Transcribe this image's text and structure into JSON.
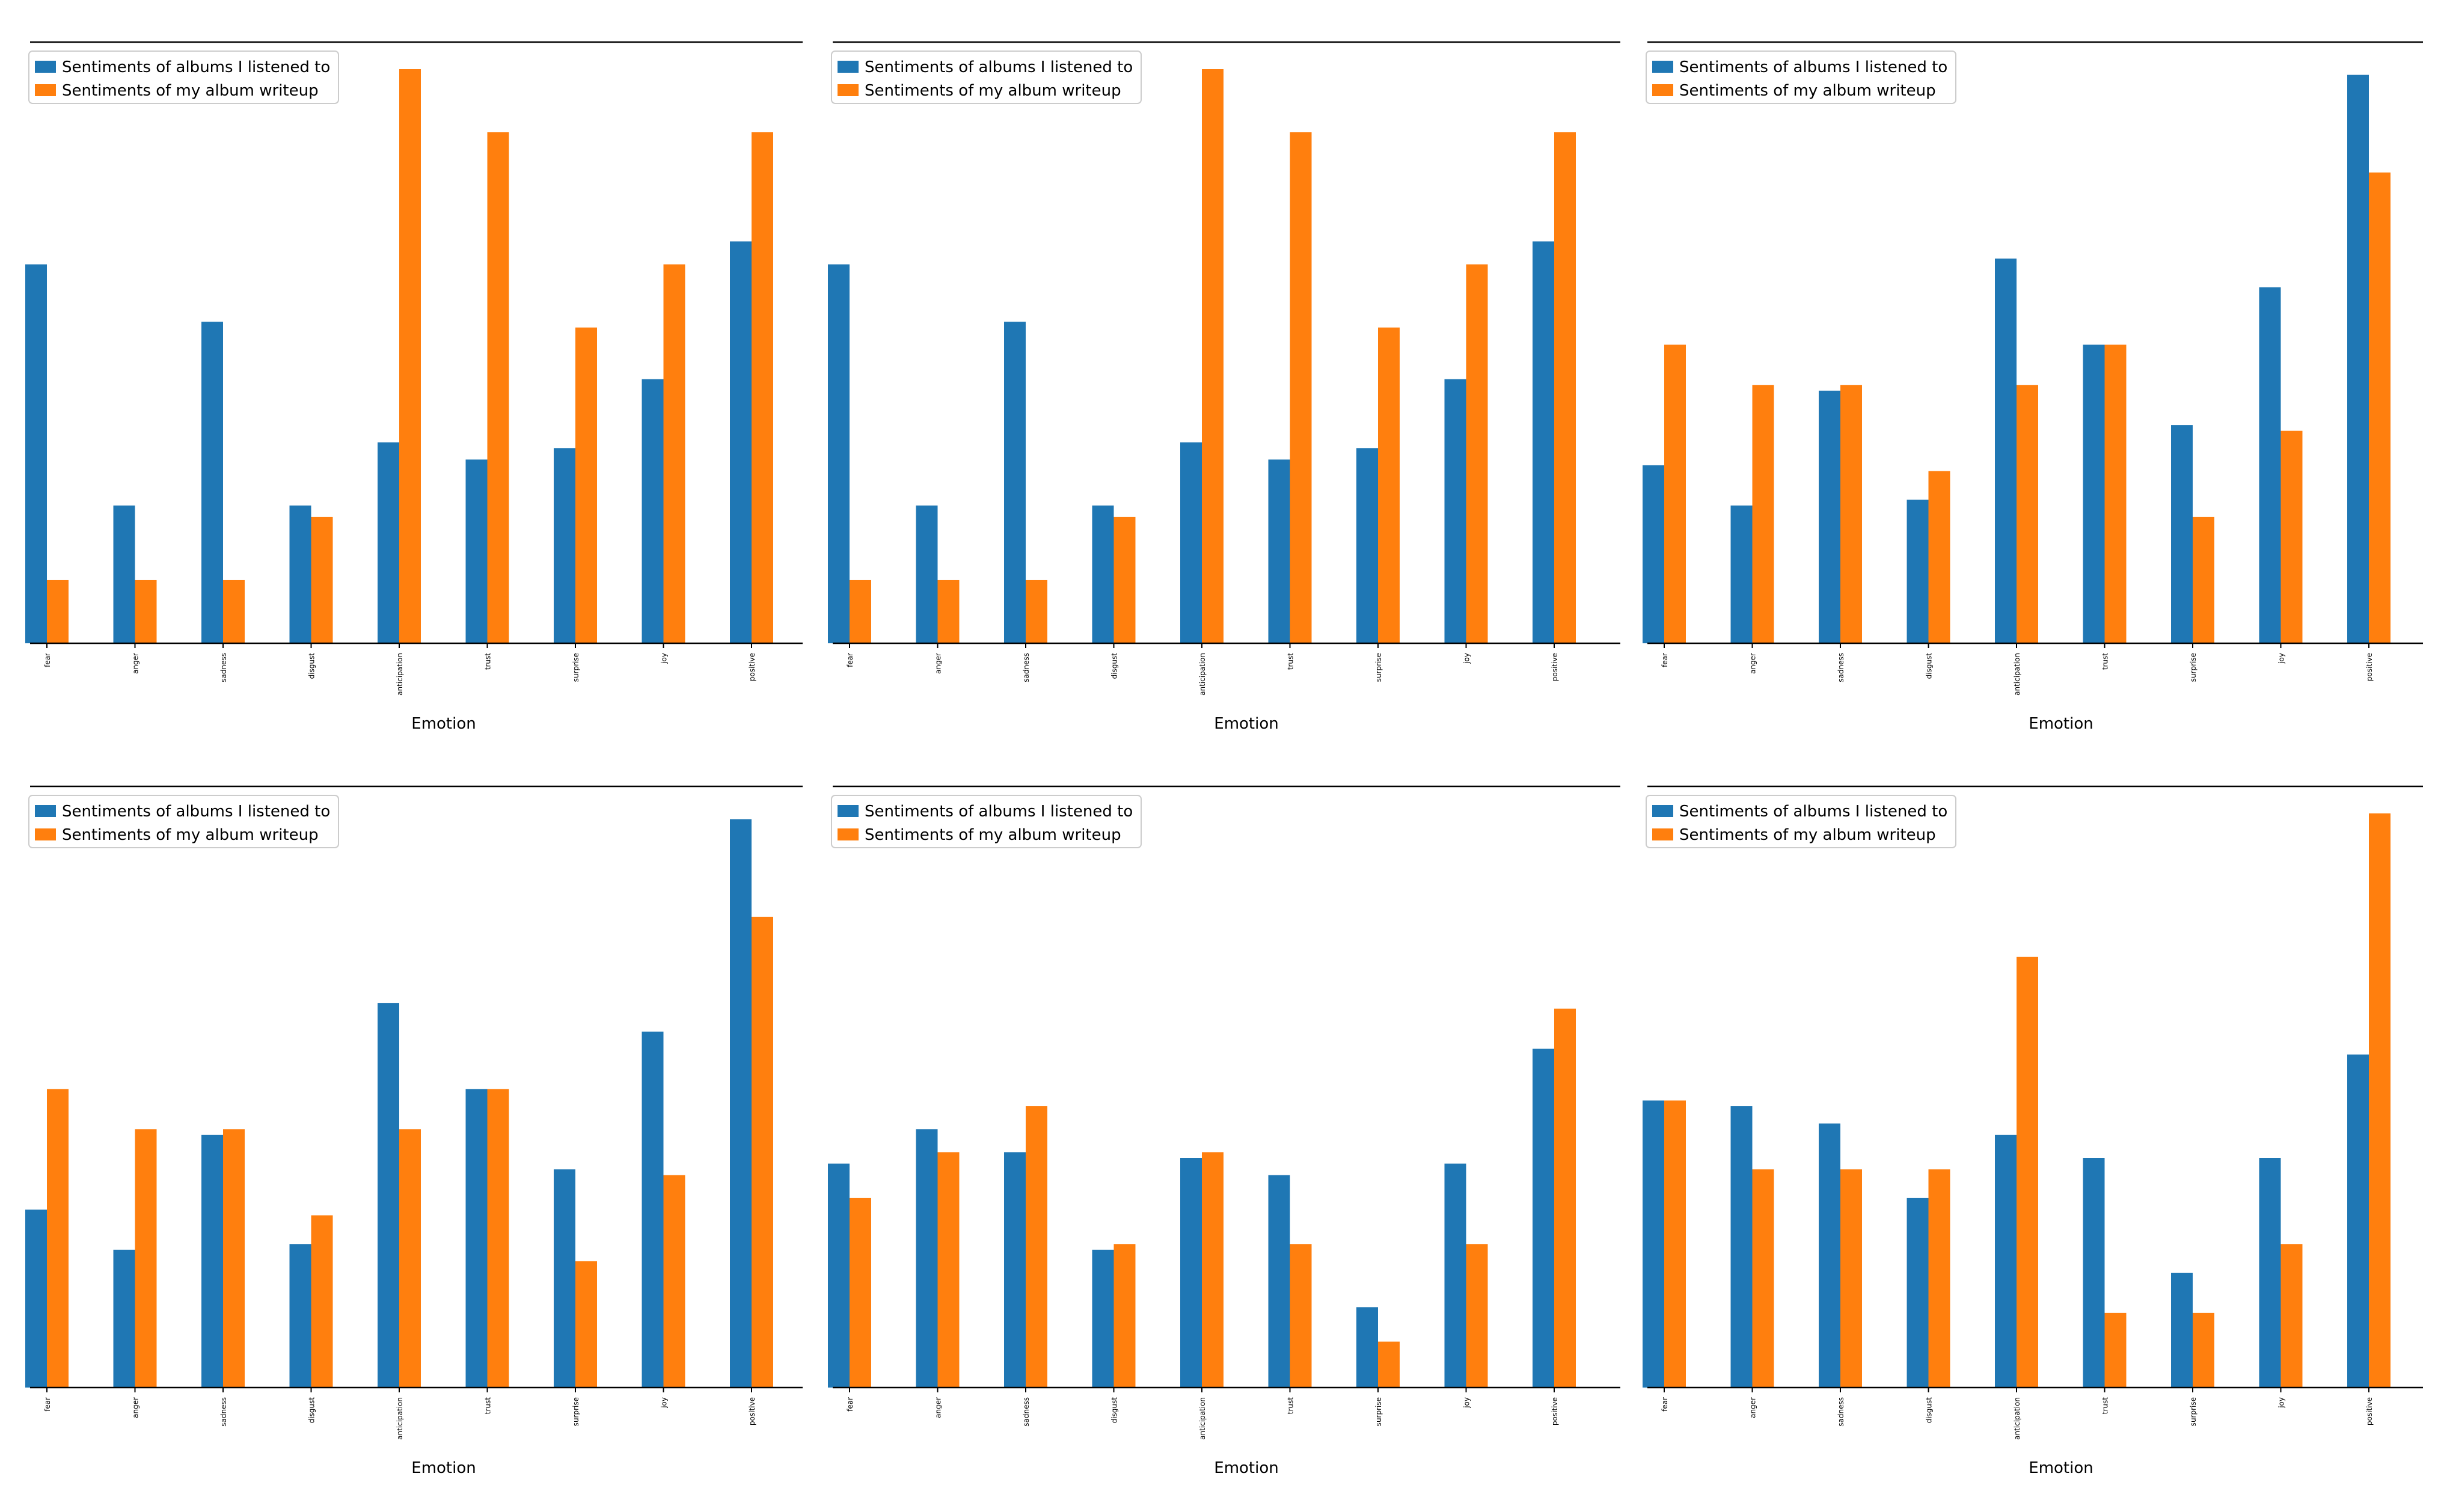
{
  "figure": {
    "series_colors": [
      "#1f77b4",
      "#ff7f0e"
    ]
  },
  "chart_data": [
    {
      "type": "bar",
      "title": "",
      "xlabel": "Emotion",
      "ylabel": "",
      "categories": [
        "fear",
        "anger",
        "sadness",
        "disgust",
        "anticipation",
        "trust",
        "surprise",
        "joy",
        "positive"
      ],
      "ylim": [
        0,
        1
      ],
      "series": [
        {
          "name": "Sentiments of albums I listened to",
          "values": [
            0.66,
            0.24,
            0.56,
            0.24,
            0.35,
            0.32,
            0.34,
            0.46,
            0.7
          ]
        },
        {
          "name": "Sentiments of my album writeup",
          "values": [
            0.11,
            0.11,
            0.11,
            0.22,
            1.0,
            0.89,
            0.55,
            0.66,
            0.89
          ]
        }
      ],
      "legend": {
        "placement": "top-left"
      }
    },
    {
      "type": "bar",
      "title": "",
      "xlabel": "Emotion",
      "ylabel": "",
      "categories": [
        "fear",
        "anger",
        "sadness",
        "disgust",
        "anticipation",
        "trust",
        "surprise",
        "joy",
        "positive"
      ],
      "ylim": [
        0,
        1
      ],
      "series": [
        {
          "name": "Sentiments of albums I listened to",
          "values": [
            0.66,
            0.24,
            0.56,
            0.24,
            0.35,
            0.32,
            0.34,
            0.46,
            0.7
          ]
        },
        {
          "name": "Sentiments of my album writeup",
          "values": [
            0.11,
            0.11,
            0.11,
            0.22,
            1.0,
            0.89,
            0.55,
            0.66,
            0.89
          ]
        }
      ],
      "legend": {
        "placement": "top-left"
      }
    },
    {
      "type": "bar",
      "title": "",
      "xlabel": "Emotion",
      "ylabel": "",
      "categories": [
        "fear",
        "anger",
        "sadness",
        "disgust",
        "anticipation",
        "trust",
        "surprise",
        "joy",
        "positive"
      ],
      "ylim": [
        0,
        1
      ],
      "series": [
        {
          "name": "Sentiments of albums I listened to",
          "values": [
            0.31,
            0.24,
            0.44,
            0.25,
            0.67,
            0.52,
            0.38,
            0.62,
            0.99
          ]
        },
        {
          "name": "Sentiments of my album writeup",
          "values": [
            0.52,
            0.45,
            0.45,
            0.3,
            0.45,
            0.52,
            0.22,
            0.37,
            0.82
          ]
        }
      ],
      "legend": {
        "placement": "top-left"
      }
    },
    {
      "type": "bar",
      "title": "",
      "xlabel": "Emotion",
      "ylabel": "",
      "categories": [
        "fear",
        "anger",
        "sadness",
        "disgust",
        "anticipation",
        "trust",
        "surprise",
        "joy",
        "positive"
      ],
      "ylim": [
        0,
        1
      ],
      "series": [
        {
          "name": "Sentiments of albums I listened to",
          "values": [
            0.31,
            0.24,
            0.44,
            0.25,
            0.67,
            0.52,
            0.38,
            0.62,
            0.99
          ]
        },
        {
          "name": "Sentiments of my album writeup",
          "values": [
            0.52,
            0.45,
            0.45,
            0.3,
            0.45,
            0.52,
            0.22,
            0.37,
            0.82
          ]
        }
      ],
      "legend": {
        "placement": "top-left"
      }
    },
    {
      "type": "bar",
      "title": "",
      "xlabel": "Emotion",
      "ylabel": "",
      "categories": [
        "fear",
        "anger",
        "sadness",
        "disgust",
        "anticipation",
        "trust",
        "surprise",
        "joy",
        "positive"
      ],
      "ylim": [
        0,
        1
      ],
      "series": [
        {
          "name": "Sentiments of albums I listened to",
          "values": [
            0.39,
            0.45,
            0.41,
            0.24,
            0.4,
            0.37,
            0.14,
            0.39,
            0.59
          ]
        },
        {
          "name": "Sentiments of my album writeup",
          "values": [
            0.33,
            0.41,
            0.49,
            0.25,
            0.41,
            0.25,
            0.08,
            0.25,
            0.66
          ]
        }
      ],
      "legend": {
        "placement": "top-left"
      }
    },
    {
      "type": "bar",
      "title": "",
      "xlabel": "Emotion",
      "ylabel": "",
      "categories": [
        "fear",
        "anger",
        "sadness",
        "disgust",
        "anticipation",
        "trust",
        "surprise",
        "joy",
        "positive"
      ],
      "ylim": [
        0,
        1
      ],
      "series": [
        {
          "name": "Sentiments of albums I listened to",
          "values": [
            0.5,
            0.49,
            0.46,
            0.33,
            0.44,
            0.4,
            0.2,
            0.4,
            0.58
          ]
        },
        {
          "name": "Sentiments of my album writeup",
          "values": [
            0.5,
            0.38,
            0.38,
            0.38,
            0.75,
            0.13,
            0.13,
            0.25,
            1.0
          ]
        }
      ],
      "legend": {
        "placement": "top-left"
      }
    }
  ]
}
